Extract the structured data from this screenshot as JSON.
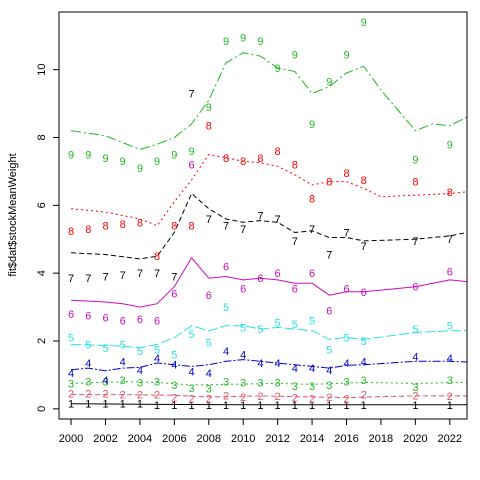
{
  "chart_data": {
    "type": "line",
    "title": "",
    "xlabel": "",
    "ylabel": "fit$dat$stockMeanWeight",
    "xlim": [
      1999.3,
      2023.0
    ],
    "ylim": [
      -0.3,
      11.7
    ],
    "xticks": [
      2000,
      2002,
      2004,
      2006,
      2008,
      2010,
      2012,
      2014,
      2016,
      2018,
      2020,
      2022
    ],
    "xtick_labels": [
      "2000",
      "2002",
      "2004",
      "2006",
      "2008",
      "2010",
      "2012",
      "2014",
      "2016",
      "2018",
      "2020",
      "2022"
    ],
    "yticks": [
      0,
      2,
      4,
      6,
      8,
      10
    ],
    "ytick_labels": [
      "0",
      "2",
      "4",
      "6",
      "8",
      "10"
    ],
    "grid": false,
    "x": [
      2000,
      2001,
      2002,
      2003,
      2004,
      2005,
      2006,
      2007,
      2008,
      2009,
      2010,
      2011,
      2012,
      2013,
      2014,
      2015,
      2016,
      2017,
      2020,
      2022
    ],
    "series": [
      {
        "name": "1",
        "label": "1",
        "color": "#000000",
        "dash": "",
        "points": [
          0.15,
          0.15,
          0.15,
          0.15,
          0.15,
          0.12,
          0.12,
          0.12,
          0.12,
          0.12,
          0.12,
          0.12,
          0.12,
          0.12,
          0.12,
          0.12,
          0.12,
          0.12,
          0.12,
          0.12
        ],
        "fit": [
          [
            2000,
            0.15
          ],
          [
            2005,
            0.13
          ],
          [
            2010,
            0.12
          ],
          [
            2015,
            0.12
          ],
          [
            2023,
            0.12
          ]
        ]
      },
      {
        "name": "2",
        "label": "2",
        "color": "#df536b",
        "dash": "5,3",
        "points": [
          0.45,
          0.45,
          0.45,
          0.42,
          0.42,
          0.42,
          0.33,
          0.3,
          0.3,
          0.4,
          0.35,
          0.38,
          0.38,
          0.33,
          0.3,
          0.35,
          0.3,
          0.42,
          0.4,
          0.38
        ],
        "fit": [
          [
            2000,
            0.42
          ],
          [
            2003,
            0.42
          ],
          [
            2006,
            0.4
          ],
          [
            2008,
            0.35
          ],
          [
            2011,
            0.38
          ],
          [
            2014,
            0.35
          ],
          [
            2016,
            0.33
          ],
          [
            2018,
            0.36
          ],
          [
            2020,
            0.38
          ],
          [
            2023,
            0.38
          ]
        ]
      },
      {
        "name": "3",
        "label": "3",
        "color": "#22b922",
        "dash": "2,3",
        "points": [
          0.75,
          0.8,
          0.8,
          0.85,
          0.78,
          0.8,
          0.7,
          0.62,
          0.6,
          0.8,
          0.78,
          0.78,
          0.78,
          0.68,
          0.68,
          0.7,
          0.8,
          0.85,
          0.65,
          0.85
        ],
        "fit": [
          [
            2000,
            0.75
          ],
          [
            2003,
            0.8
          ],
          [
            2005,
            0.78
          ],
          [
            2007,
            0.7
          ],
          [
            2009,
            0.72
          ],
          [
            2012,
            0.75
          ],
          [
            2014,
            0.72
          ],
          [
            2017,
            0.78
          ],
          [
            2020,
            0.75
          ],
          [
            2023,
            0.78
          ]
        ]
      },
      {
        "name": "4",
        "label": "4",
        "color": "#0000cc",
        "dash": "8,2,2,2",
        "points": [
          1.05,
          1.35,
          0.85,
          1.4,
          1.15,
          1.5,
          1.3,
          1.1,
          1.05,
          1.7,
          1.6,
          1.35,
          1.35,
          1.2,
          1.2,
          1.15,
          1.35,
          1.4,
          1.55,
          1.5
        ],
        "fit": [
          [
            2000,
            1.15
          ],
          [
            2001,
            1.2
          ],
          [
            2002,
            1.12
          ],
          [
            2003,
            1.2
          ],
          [
            2004,
            1.22
          ],
          [
            2005,
            1.35
          ],
          [
            2006,
            1.3
          ],
          [
            2007,
            1.25
          ],
          [
            2008,
            1.3
          ],
          [
            2009,
            1.4
          ],
          [
            2010,
            1.45
          ],
          [
            2011,
            1.4
          ],
          [
            2012,
            1.35
          ],
          [
            2013,
            1.3
          ],
          [
            2014,
            1.25
          ],
          [
            2015,
            1.2
          ],
          [
            2016,
            1.28
          ],
          [
            2017,
            1.3
          ],
          [
            2020,
            1.4
          ],
          [
            2022,
            1.4
          ],
          [
            2023,
            1.38
          ]
        ]
      },
      {
        "name": "5",
        "label": "5",
        "color": "#28e2e5",
        "dash": "10,3",
        "points": [
          2.1,
          1.9,
          1.8,
          1.9,
          1.7,
          1.75,
          1.6,
          2.2,
          1.95,
          3.0,
          2.4,
          2.35,
          2.55,
          2.5,
          2.6,
          1.75,
          2.1,
          2.0,
          2.35,
          2.45
        ],
        "fit": [
          [
            2000,
            1.9
          ],
          [
            2003,
            1.85
          ],
          [
            2004,
            1.8
          ],
          [
            2005,
            1.9
          ],
          [
            2006,
            2.1
          ],
          [
            2007,
            2.45
          ],
          [
            2008,
            2.3
          ],
          [
            2009,
            2.45
          ],
          [
            2010,
            2.45
          ],
          [
            2011,
            2.35
          ],
          [
            2012,
            2.4
          ],
          [
            2013,
            2.35
          ],
          [
            2014,
            2.3
          ],
          [
            2015,
            2.05
          ],
          [
            2016,
            2.1
          ],
          [
            2017,
            2.05
          ],
          [
            2020,
            2.25
          ],
          [
            2022,
            2.3
          ],
          [
            2023,
            2.3
          ]
        ]
      },
      {
        "name": "6",
        "label": "6",
        "color": "#cd0bbc",
        "dash": "",
        "points": [
          2.8,
          2.75,
          2.7,
          2.6,
          2.65,
          2.6,
          3.4,
          7.2,
          3.35,
          4.2,
          3.55,
          3.85,
          4.0,
          3.55,
          4.0,
          2.9,
          3.55,
          3.45,
          3.6,
          4.05
        ],
        "fit": [
          [
            2000,
            3.2
          ],
          [
            2002,
            3.15
          ],
          [
            2003,
            3.1
          ],
          [
            2004,
            3.0
          ],
          [
            2005,
            3.1
          ],
          [
            2006,
            3.6
          ],
          [
            2007,
            4.45
          ],
          [
            2008,
            3.85
          ],
          [
            2009,
            3.9
          ],
          [
            2010,
            3.8
          ],
          [
            2011,
            3.85
          ],
          [
            2012,
            3.8
          ],
          [
            2013,
            3.7
          ],
          [
            2014,
            3.7
          ],
          [
            2015,
            3.35
          ],
          [
            2016,
            3.45
          ],
          [
            2017,
            3.45
          ],
          [
            2020,
            3.6
          ],
          [
            2022,
            3.8
          ],
          [
            2023,
            3.75
          ]
        ]
      },
      {
        "name": "7",
        "label": "7",
        "color": "#000000",
        "dash": "5,3",
        "points": [
          3.85,
          3.85,
          3.9,
          3.95,
          4.0,
          4.0,
          3.9,
          9.3,
          5.6,
          5.4,
          5.3,
          5.7,
          5.6,
          4.95,
          5.3,
          4.55,
          5.2,
          4.8,
          4.95,
          5.0
        ],
        "fit": [
          [
            2000,
            4.6
          ],
          [
            2002,
            4.55
          ],
          [
            2004,
            4.42
          ],
          [
            2005,
            4.5
          ],
          [
            2006,
            5.2
          ],
          [
            2007,
            6.35
          ],
          [
            2008,
            5.9
          ],
          [
            2009,
            5.6
          ],
          [
            2010,
            5.5
          ],
          [
            2011,
            5.55
          ],
          [
            2012,
            5.5
          ],
          [
            2013,
            5.2
          ],
          [
            2014,
            5.25
          ],
          [
            2015,
            5.05
          ],
          [
            2016,
            5.05
          ],
          [
            2017,
            4.95
          ],
          [
            2020,
            5.0
          ],
          [
            2022,
            5.1
          ],
          [
            2023,
            5.2
          ]
        ]
      },
      {
        "name": "8",
        "label": "8",
        "color": "#ff0000",
        "dash": "2,3",
        "points": [
          5.25,
          5.3,
          5.4,
          5.45,
          5.5,
          4.5,
          5.4,
          5.4,
          8.35,
          7.4,
          7.3,
          7.4,
          7.6,
          7.2,
          6.2,
          6.7,
          6.95,
          6.75,
          6.7,
          6.4
        ],
        "fit": [
          [
            2000,
            5.9
          ],
          [
            2002,
            5.8
          ],
          [
            2004,
            5.6
          ],
          [
            2005,
            5.4
          ],
          [
            2006,
            6.1
          ],
          [
            2007,
            6.75
          ],
          [
            2008,
            7.5
          ],
          [
            2009,
            7.4
          ],
          [
            2010,
            7.3
          ],
          [
            2011,
            7.25
          ],
          [
            2012,
            7.15
          ],
          [
            2013,
            6.9
          ],
          [
            2014,
            6.6
          ],
          [
            2015,
            6.7
          ],
          [
            2016,
            6.7
          ],
          [
            2017,
            6.5
          ],
          [
            2018,
            6.25
          ],
          [
            2020,
            6.3
          ],
          [
            2022,
            6.35
          ],
          [
            2023,
            6.4
          ]
        ]
      },
      {
        "name": "9",
        "label": "9",
        "color": "#22b922",
        "dash": "10,3,2,3",
        "points": [
          7.5,
          7.5,
          7.4,
          7.3,
          7.1,
          7.3,
          7.5,
          7.6,
          8.9,
          10.85,
          10.95,
          10.85,
          10.05,
          10.45,
          8.4,
          9.65,
          10.45,
          11.4,
          7.35,
          7.8
        ],
        "fit": [
          [
            2000,
            8.2
          ],
          [
            2002,
            8.05
          ],
          [
            2003,
            7.85
          ],
          [
            2004,
            7.65
          ],
          [
            2005,
            7.8
          ],
          [
            2006,
            8.0
          ],
          [
            2007,
            8.4
          ],
          [
            2008,
            9.1
          ],
          [
            2009,
            10.2
          ],
          [
            2010,
            10.5
          ],
          [
            2011,
            10.4
          ],
          [
            2012,
            10.05
          ],
          [
            2013,
            9.95
          ],
          [
            2014,
            9.3
          ],
          [
            2015,
            9.5
          ],
          [
            2016,
            9.9
          ],
          [
            2017,
            10.1
          ],
          [
            2018,
            9.4
          ],
          [
            2020,
            8.2
          ],
          [
            2021,
            8.4
          ],
          [
            2022,
            8.35
          ],
          [
            2023,
            8.6
          ]
        ]
      }
    ]
  }
}
